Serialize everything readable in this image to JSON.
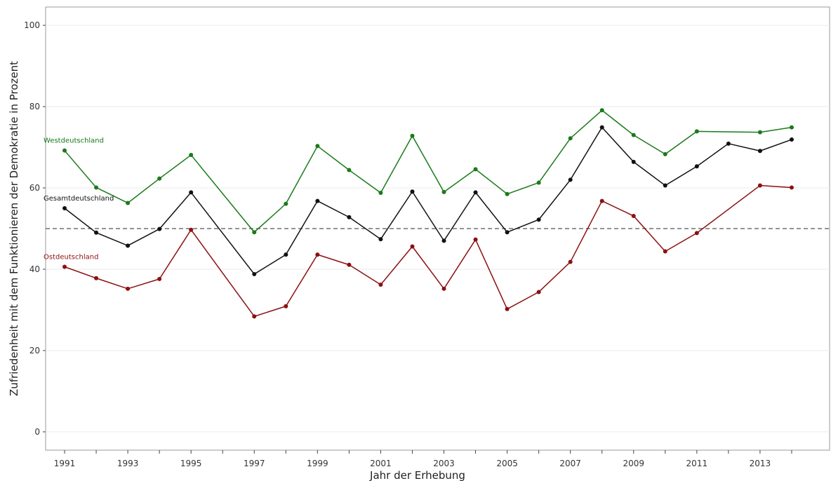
{
  "chart_data": {
    "type": "line",
    "title": "",
    "xlabel": "Jahr der Erhebung",
    "ylabel": "Zufriedenheit mit dem Funktionieren der Demokratie in Prozent",
    "xlim": [
      1990.4,
      2015.2
    ],
    "ylim": [
      -4.5,
      104.5
    ],
    "x_ticks": [
      1991,
      1993,
      1995,
      1997,
      1999,
      2001,
      2003,
      2005,
      2007,
      2009,
      2011,
      2013
    ],
    "y_ticks": [
      0,
      20,
      40,
      60,
      80,
      100
    ],
    "grid": true,
    "reference_line": {
      "y": 50,
      "style": "dashed"
    },
    "legend": "direct labels at left",
    "series": [
      {
        "name": "Westdeutschland",
        "color": "#1a7a1a",
        "points": [
          [
            1991,
            69.2
          ],
          [
            1992,
            60.1
          ],
          [
            1993,
            56.3
          ],
          [
            1994,
            62.3
          ],
          [
            1995,
            68.1
          ],
          [
            1997,
            49.1
          ],
          [
            1998,
            56.1
          ],
          [
            1999,
            70.3
          ],
          [
            2000,
            64.4
          ],
          [
            2001,
            58.8
          ],
          [
            2002,
            72.8
          ],
          [
            2003,
            59.0
          ],
          [
            2004,
            64.6
          ],
          [
            2005,
            58.5
          ],
          [
            2006,
            61.3
          ],
          [
            2007,
            72.2
          ],
          [
            2008,
            79.1
          ],
          [
            2009,
            73.0
          ],
          [
            2010,
            68.3
          ],
          [
            2011,
            73.9
          ],
          [
            2013,
            73.7
          ],
          [
            2014,
            74.9
          ]
        ]
      },
      {
        "name": "Gesamtdeutschland",
        "color": "#111111",
        "points": [
          [
            1991,
            55.0
          ],
          [
            1992,
            49.0
          ],
          [
            1993,
            45.8
          ],
          [
            1994,
            49.9
          ],
          [
            1995,
            58.9
          ],
          [
            1997,
            38.8
          ],
          [
            1998,
            43.6
          ],
          [
            1999,
            56.8
          ],
          [
            2000,
            52.8
          ],
          [
            2001,
            47.4
          ],
          [
            2002,
            59.1
          ],
          [
            2003,
            47.0
          ],
          [
            2004,
            58.9
          ],
          [
            2005,
            49.1
          ],
          [
            2006,
            52.2
          ],
          [
            2007,
            62.0
          ],
          [
            2008,
            74.9
          ],
          [
            2009,
            66.4
          ],
          [
            2010,
            60.6
          ],
          [
            2011,
            65.3
          ],
          [
            2012,
            70.9
          ],
          [
            2013,
            69.1
          ],
          [
            2014,
            71.9
          ]
        ]
      },
      {
        "name": "Ostdeutschland",
        "color": "#8b1010",
        "points": [
          [
            1991,
            40.6
          ],
          [
            1992,
            37.8
          ],
          [
            1993,
            35.2
          ],
          [
            1994,
            37.6
          ],
          [
            1995,
            49.7
          ],
          [
            1997,
            28.4
          ],
          [
            1998,
            30.9
          ],
          [
            1999,
            43.6
          ],
          [
            2000,
            41.1
          ],
          [
            2001,
            36.2
          ],
          [
            2002,
            45.6
          ],
          [
            2003,
            35.2
          ],
          [
            2004,
            47.3
          ],
          [
            2005,
            30.2
          ],
          [
            2006,
            34.4
          ],
          [
            2007,
            41.8
          ],
          [
            2008,
            56.8
          ],
          [
            2009,
            53.1
          ],
          [
            2010,
            44.4
          ],
          [
            2011,
            48.9
          ],
          [
            2013,
            60.6
          ],
          [
            2014,
            60.1
          ]
        ]
      }
    ]
  }
}
